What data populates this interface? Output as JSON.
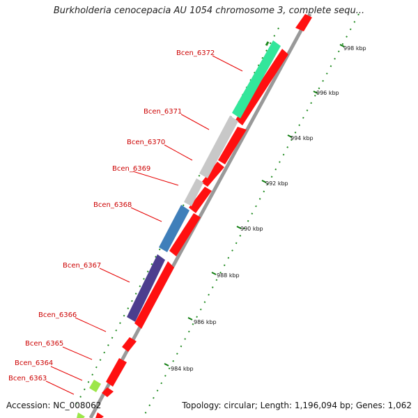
{
  "title": "Burkholderia cenocepacia AU 1054 chromosome 3, complete sequ...",
  "footer": {
    "accession": "Accession: NC_008062",
    "topology": "Topology: circular; Length: 1,196,094 bp; Genes: 1,062"
  },
  "colors": {
    "gene_label": "#cc0000",
    "reverse_strand": "#ff0000",
    "backbone": "#999999",
    "tick": "#008800"
  },
  "gene_labels": [
    "Bcen_6372",
    "Bcen_6371",
    "Bcen_6370",
    "Bcen_6369",
    "Bcen_6368",
    "Bcen_6367",
    "Bcen_6366",
    "Bcen_6365",
    "Bcen_6364",
    "Bcen_6363"
  ],
  "tick_labels": [
    "998 kbp",
    "996 kbp",
    "994 kbp",
    "992 kbp",
    "990 kbp",
    "988 kbp",
    "986 kbp",
    "984 kbp"
  ]
}
